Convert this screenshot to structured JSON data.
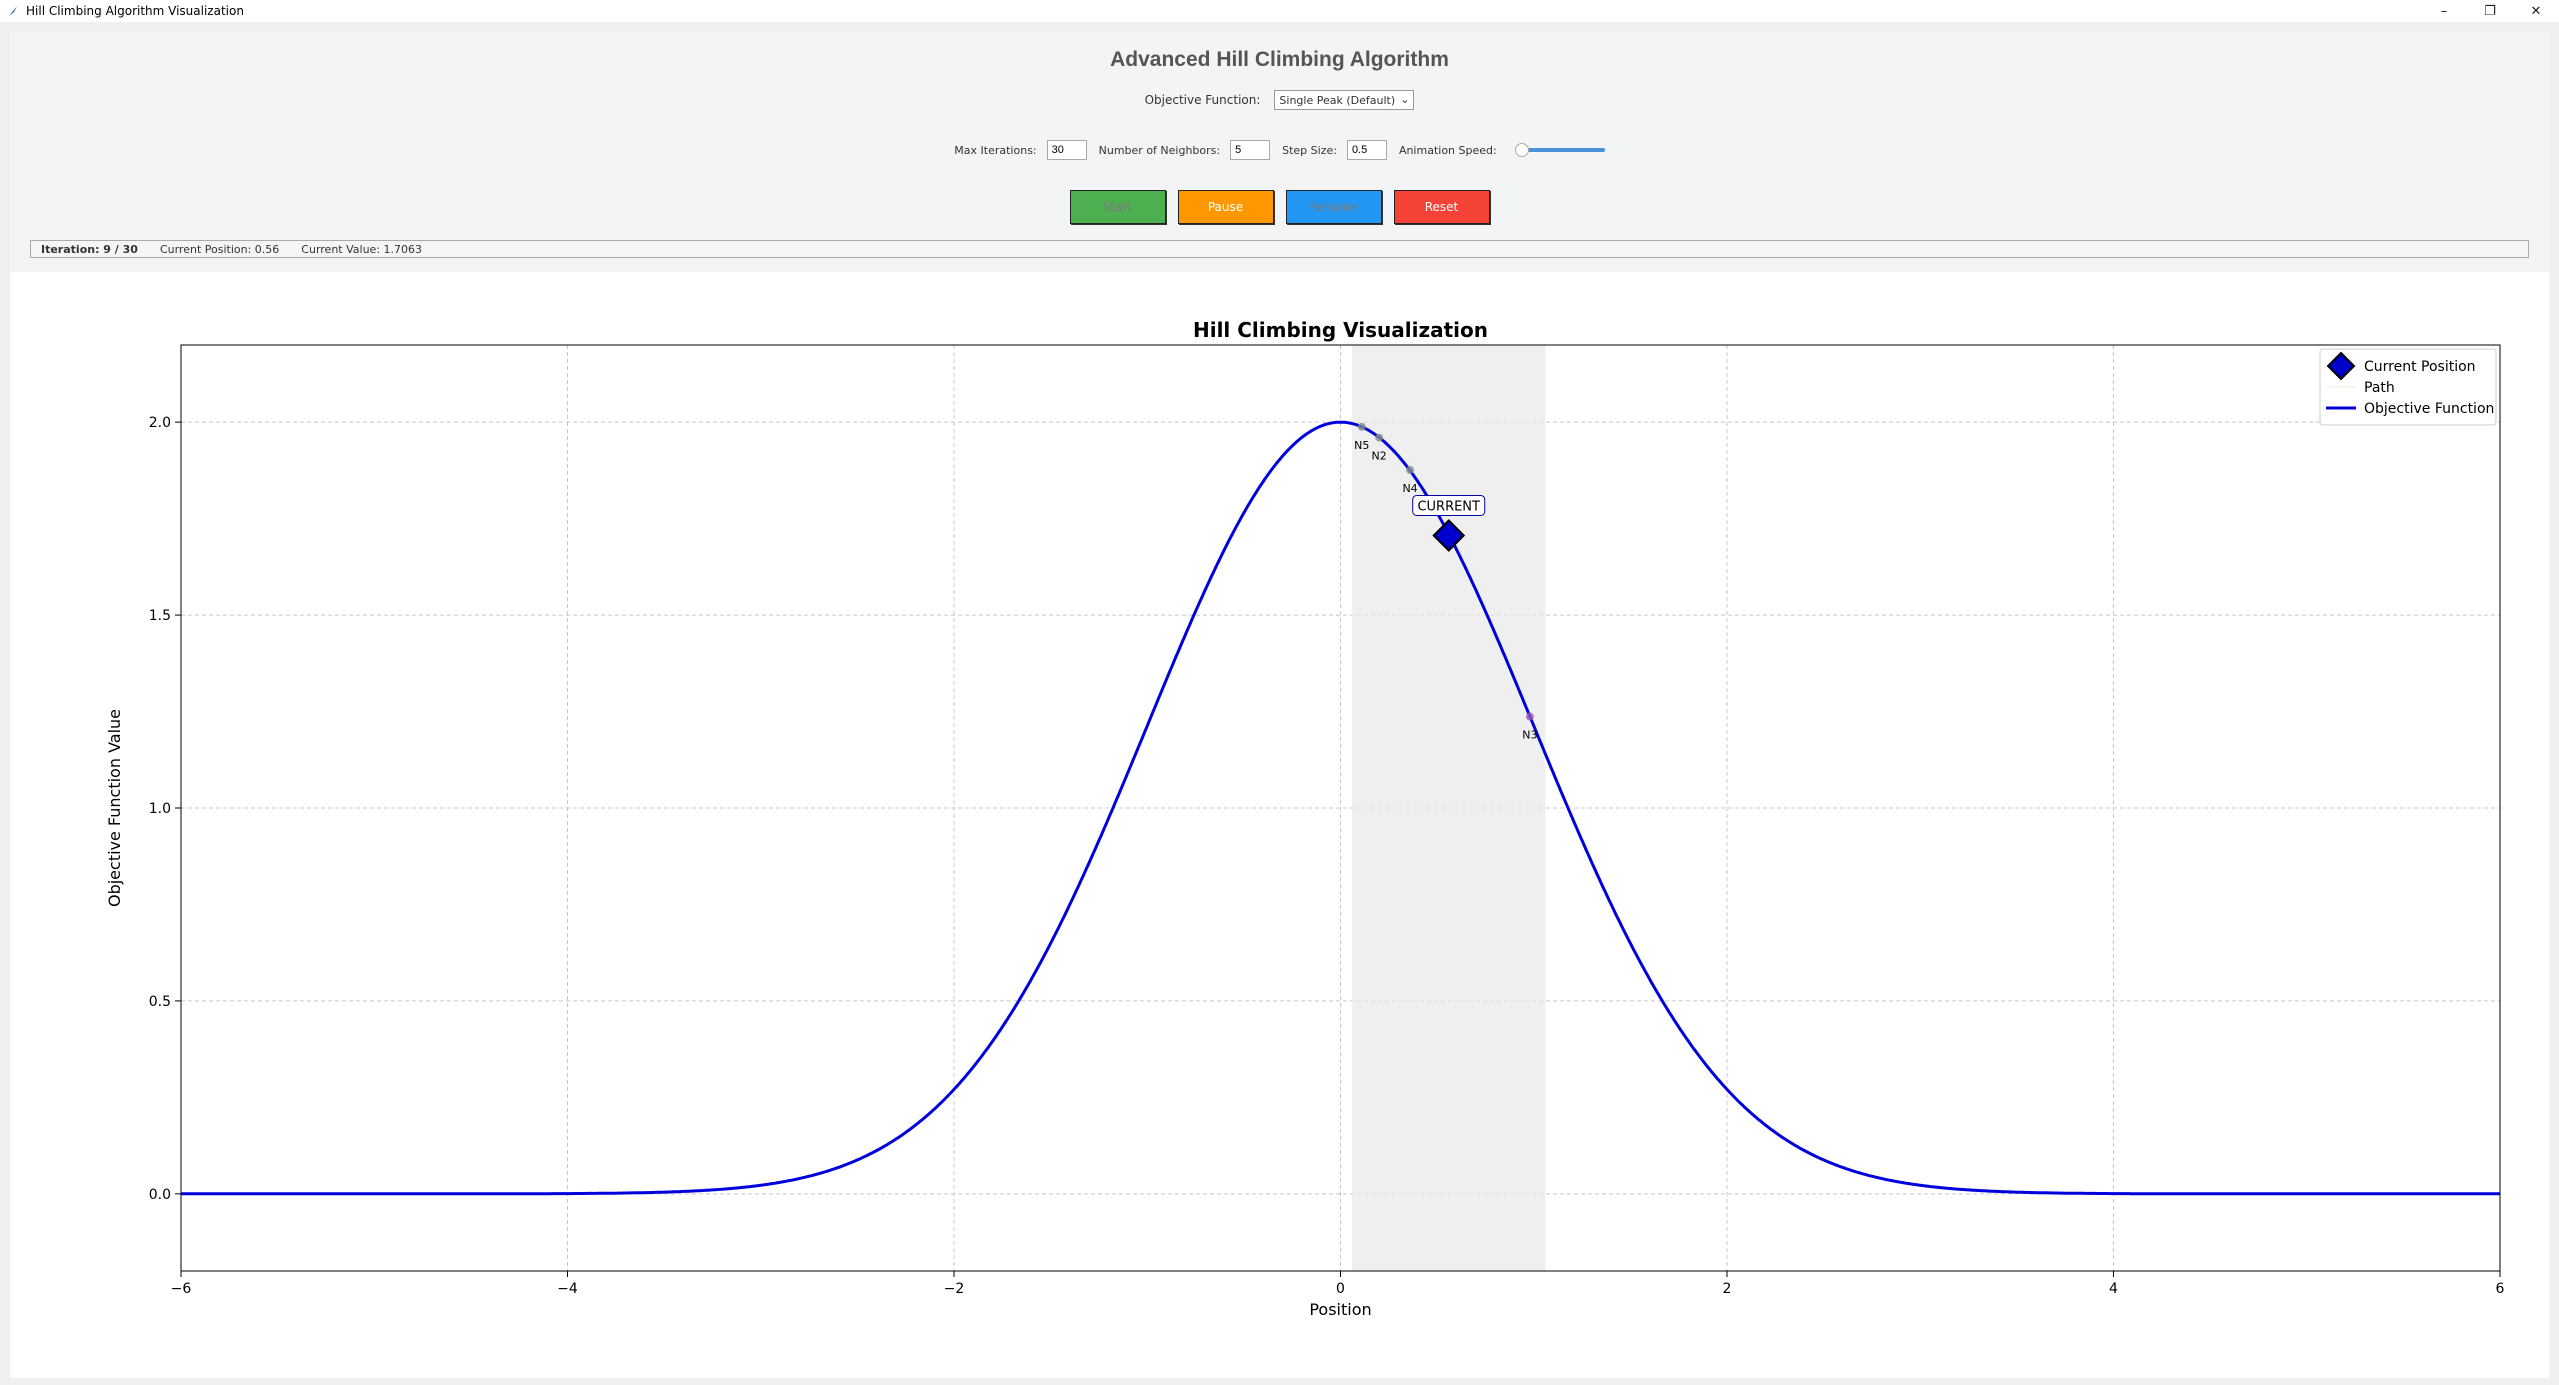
{
  "window": {
    "title": "Hill Climbing Algorithm Visualization",
    "controls": [
      "–",
      "❐",
      "✕"
    ]
  },
  "header": {
    "title": "Advanced Hill Climbing Algorithm",
    "objective_label": "Objective Function:",
    "objective_value": "Single Peak (Default)"
  },
  "params": {
    "max_iterations_label": "Max Iterations:",
    "max_iterations_value": "30",
    "neighbors_label": "Number of Neighbors:",
    "neighbors_value": "5",
    "step_size_label": "Step Size:",
    "step_size_value": "0.5",
    "speed_label": "Animation Speed:",
    "speed_fraction": 0.0
  },
  "buttons": {
    "start": "Start",
    "pause": "Pause",
    "resume": "Resume",
    "reset": "Reset"
  },
  "colors": {
    "start": "#4caf50",
    "pause": "#ff9800",
    "resume": "#2196f3",
    "reset": "#f44336",
    "curve": "#0000dd"
  },
  "status": {
    "iteration": "Iteration: 9 / 30",
    "position": "Current Position: 0.56",
    "value": "Current Value: 1.7063"
  },
  "chart_data": {
    "type": "line",
    "title": "Hill Climbing Visualization",
    "xlabel": "Position",
    "ylabel": "Objective Function Value",
    "xlim": [
      -6,
      6
    ],
    "ylim": [
      -0.2,
      2.2
    ],
    "xticks": [
      -6,
      -4,
      -2,
      0,
      2,
      4,
      6
    ],
    "xtick_labels": [
      "−6",
      "−4",
      "−2",
      "0",
      "2",
      "4",
      "6"
    ],
    "yticks": [
      0.0,
      0.5,
      1.0,
      1.5,
      2.0
    ],
    "ytick_labels": [
      "0.0",
      "0.5",
      "1.0",
      "1.5",
      "2.0"
    ],
    "grid": true,
    "legend_position": "top-right",
    "legend": [
      "Current Position",
      "Path",
      "Objective Function"
    ],
    "objective_function": "2*exp(-x^2/2)",
    "search_range": [
      0.06,
      1.06
    ],
    "current": {
      "x": 0.56,
      "y": 1.7063,
      "label": "CURRENT"
    },
    "neighbors": [
      {
        "label": "N5",
        "x": 0.11,
        "y": 1.988
      },
      {
        "label": "N2",
        "x": 0.2,
        "y": 1.96
      },
      {
        "label": "N4",
        "x": 0.36,
        "y": 1.876
      },
      {
        "label": "N3",
        "x": 0.98,
        "y": 1.237
      }
    ]
  }
}
